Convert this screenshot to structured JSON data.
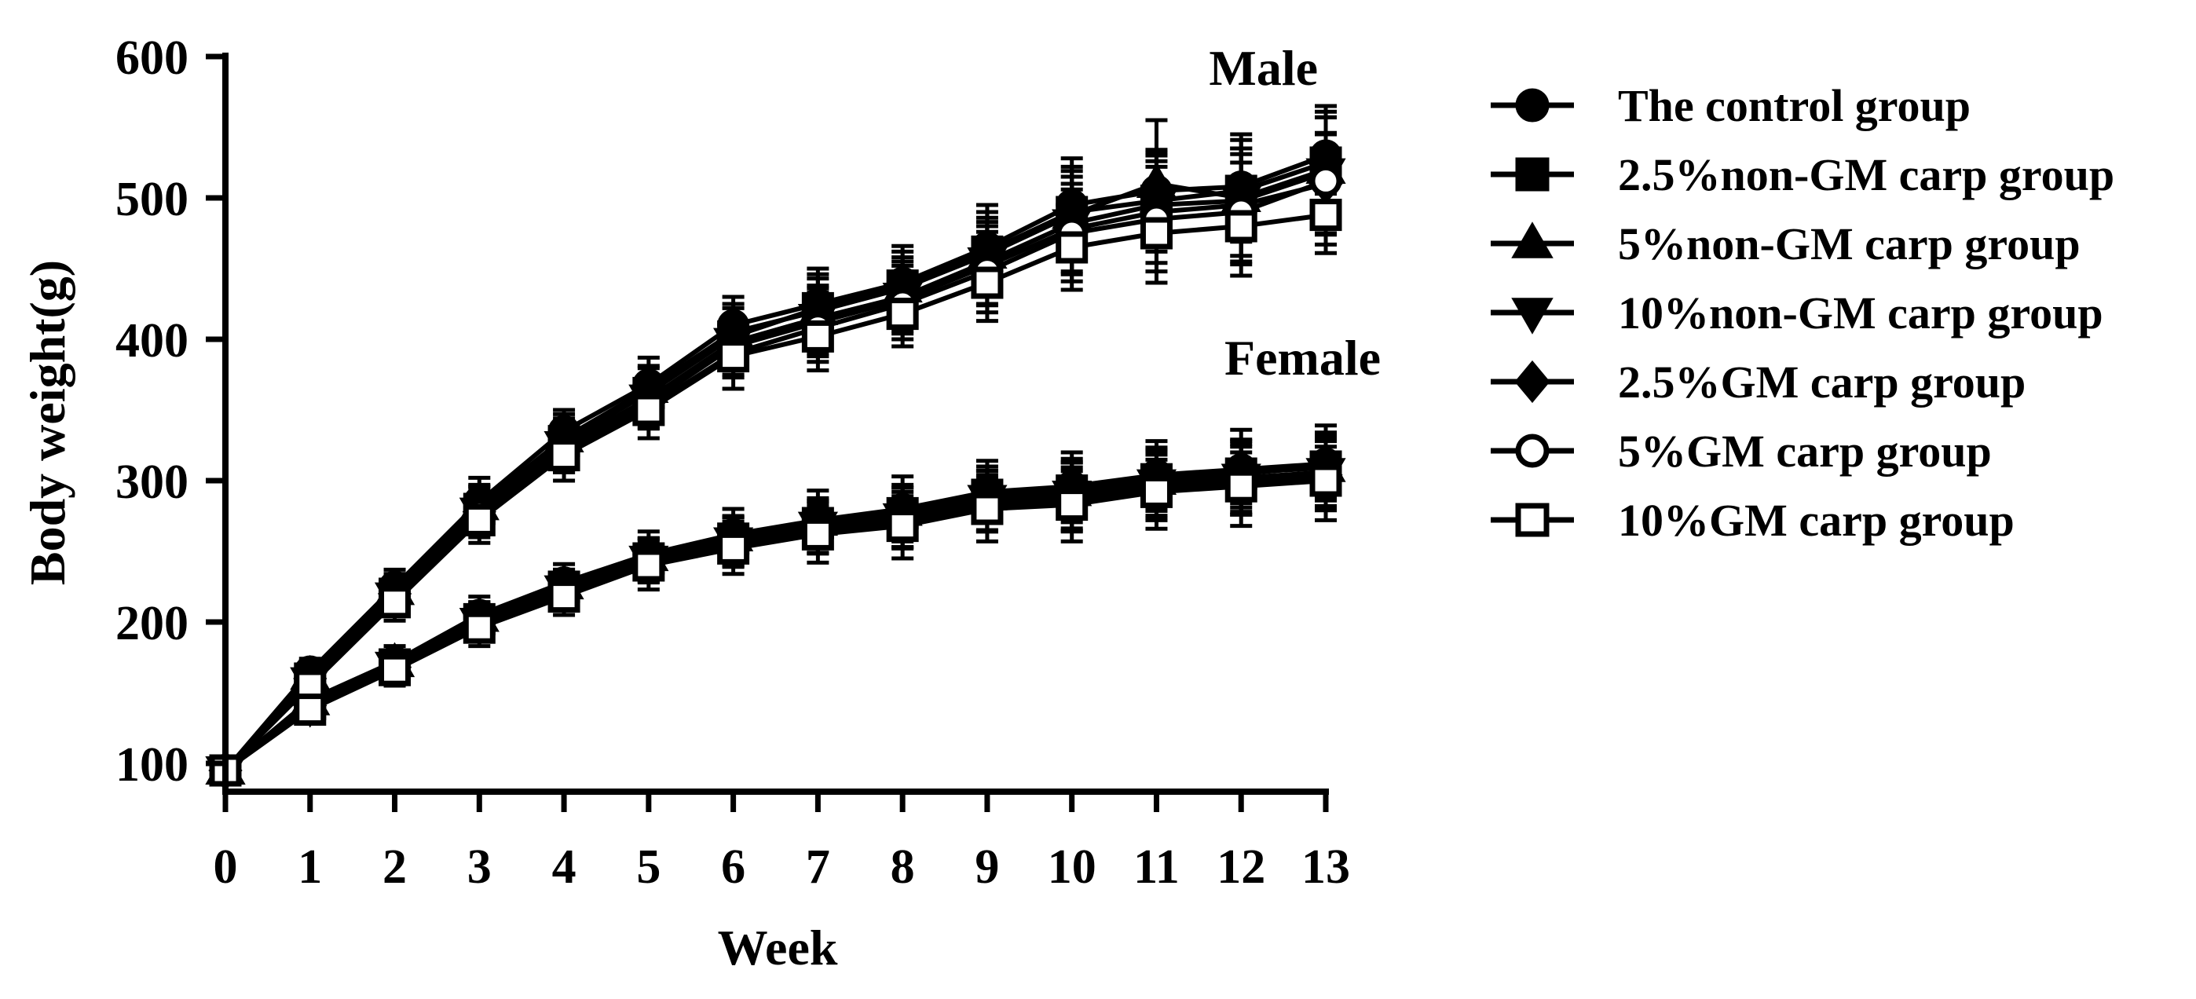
{
  "chart_data": {
    "type": "line",
    "xlabel": "Week",
    "ylabel": "Body weight(g)",
    "x": [
      0,
      1,
      2,
      3,
      4,
      5,
      6,
      7,
      8,
      9,
      10,
      11,
      12,
      13
    ],
    "xlim": [
      0,
      13
    ],
    "ylim": [
      100,
      600
    ],
    "yticks": [
      100,
      200,
      300,
      400,
      500,
      600
    ],
    "xticks": [
      0,
      1,
      2,
      3,
      4,
      5,
      6,
      7,
      8,
      9,
      10,
      11,
      12,
      13
    ],
    "grid": false,
    "legend_position": "right",
    "error_bars": true,
    "annotations": [
      {
        "text": "Male",
        "x": 12.6,
        "y": 590
      },
      {
        "text": "Female",
        "x": 12.6,
        "y": 385
      }
    ],
    "series": [
      {
        "name": "The control group",
        "marker": "filled-circle",
        "color": "#000000",
        "male": [
          95,
          165,
          225,
          285,
          335,
          368,
          410,
          425,
          440,
          465,
          495,
          505,
          508,
          530
        ],
        "female": [
          95,
          145,
          172,
          205,
          228,
          248,
          262,
          272,
          280,
          292,
          296,
          304,
          308,
          312
        ]
      },
      {
        "name": "2.5%non-GM carp group",
        "marker": "filled-square",
        "color": "#000000",
        "male": [
          95,
          160,
          220,
          280,
          328,
          362,
          402,
          422,
          438,
          462,
          490,
          498,
          505,
          525
        ],
        "female": [
          95,
          142,
          170,
          202,
          225,
          245,
          259,
          270,
          277,
          290,
          293,
          301,
          305,
          310
        ]
      },
      {
        "name": "5%non-GM carp group",
        "marker": "filled-triangle-up",
        "color": "#000000",
        "male": [
          95,
          162,
          222,
          282,
          330,
          365,
          405,
          420,
          436,
          460,
          488,
          510,
          500,
          520
        ],
        "female": [
          95,
          144,
          171,
          203,
          226,
          246,
          260,
          271,
          278,
          289,
          292,
          300,
          306,
          309
        ]
      },
      {
        "name": "10%non-GM carp group",
        "marker": "filled-triangle-down",
        "color": "#000000",
        "male": [
          95,
          158,
          218,
          278,
          325,
          358,
          398,
          415,
          430,
          455,
          482,
          495,
          498,
          518
        ],
        "female": [
          95,
          140,
          169,
          200,
          223,
          244,
          257,
          268,
          274,
          287,
          290,
          298,
          302,
          306
        ]
      },
      {
        "name": "2.5%GM carp group",
        "marker": "filled-diamond",
        "color": "#000000",
        "male": [
          95,
          160,
          220,
          278,
          322,
          355,
          395,
          412,
          428,
          452,
          478,
          490,
          495,
          510
        ],
        "female": [
          95,
          141,
          168,
          199,
          222,
          243,
          255,
          266,
          272,
          284,
          287,
          296,
          300,
          304
        ]
      },
      {
        "name": "5%GM carp group",
        "marker": "open-circle",
        "color": "#000000",
        "male": [
          95,
          157,
          216,
          276,
          320,
          352,
          390,
          408,
          425,
          448,
          475,
          485,
          490,
          512
        ],
        "female": [
          95,
          139,
          167,
          198,
          220,
          241,
          254,
          264,
          270,
          282,
          285,
          294,
          298,
          302
        ]
      },
      {
        "name": "10%GM carp group",
        "marker": "open-square",
        "color": "#000000",
        "male": [
          95,
          155,
          214,
          272,
          318,
          350,
          388,
          402,
          418,
          440,
          465,
          475,
          480,
          488
        ],
        "female": [
          95,
          138,
          166,
          196,
          218,
          240,
          252,
          262,
          268,
          280,
          283,
          292,
          296,
          300
        ]
      }
    ],
    "error_male": [
      8,
      12,
      15,
      20,
      20,
      22,
      25,
      30,
      30,
      35,
      40,
      45,
      45,
      45
    ],
    "error_female": [
      8,
      10,
      12,
      15,
      15,
      18,
      20,
      22,
      25,
      25,
      28,
      28,
      30,
      30
    ]
  }
}
